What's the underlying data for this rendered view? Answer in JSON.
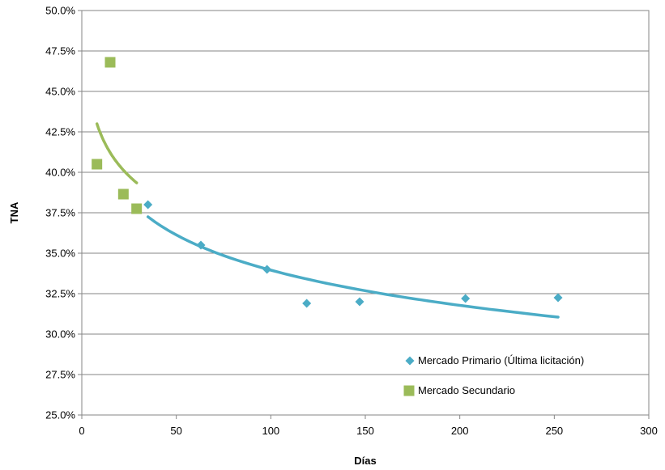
{
  "chart_data": {
    "type": "scatter",
    "xlabel": "Días",
    "ylabel": "TNA",
    "xlim": [
      0,
      300
    ],
    "ylim": [
      0.25,
      0.5
    ],
    "x_ticks": [
      0,
      50,
      100,
      150,
      200,
      250,
      300
    ],
    "x_tick_labels": [
      "0",
      "50",
      "100",
      "150",
      "200",
      "250",
      "300"
    ],
    "y_ticks": [
      0.25,
      0.275,
      0.3,
      0.325,
      0.35,
      0.375,
      0.4,
      0.425,
      0.45,
      0.475,
      0.5
    ],
    "y_tick_labels": [
      "25.0%",
      "27.5%",
      "30.0%",
      "32.5%",
      "35.0%",
      "37.5%",
      "40.0%",
      "42.5%",
      "45.0%",
      "47.5%",
      "50.0%"
    ],
    "grid": "horizontal",
    "legend_position": "bottom-right",
    "series": [
      {
        "name": "Mercado Primario (Última licitación)",
        "marker": "diamond",
        "color": "#4bacc6",
        "points": [
          {
            "x": 35,
            "y": 0.38
          },
          {
            "x": 63,
            "y": 0.355
          },
          {
            "x": 98,
            "y": 0.34
          },
          {
            "x": 119,
            "y": 0.319
          },
          {
            "x": 147,
            "y": 0.32
          },
          {
            "x": 203,
            "y": 0.322
          },
          {
            "x": 252,
            "y": 0.3225
          }
        ],
        "trendline": {
          "type": "log",
          "x_start": 35,
          "x_end": 252,
          "y_start": 0.3725,
          "y_end": 0.3105
        }
      },
      {
        "name": "Mercado Secundario",
        "marker": "square",
        "color": "#9bbb59",
        "points": [
          {
            "x": 8,
            "y": 0.405
          },
          {
            "x": 15,
            "y": 0.468
          },
          {
            "x": 22,
            "y": 0.3865
          },
          {
            "x": 29,
            "y": 0.3775
          }
        ],
        "trendline": {
          "type": "log",
          "x_start": 8,
          "x_end": 29,
          "y_start": 0.43,
          "y_end": 0.3935
        }
      }
    ]
  }
}
